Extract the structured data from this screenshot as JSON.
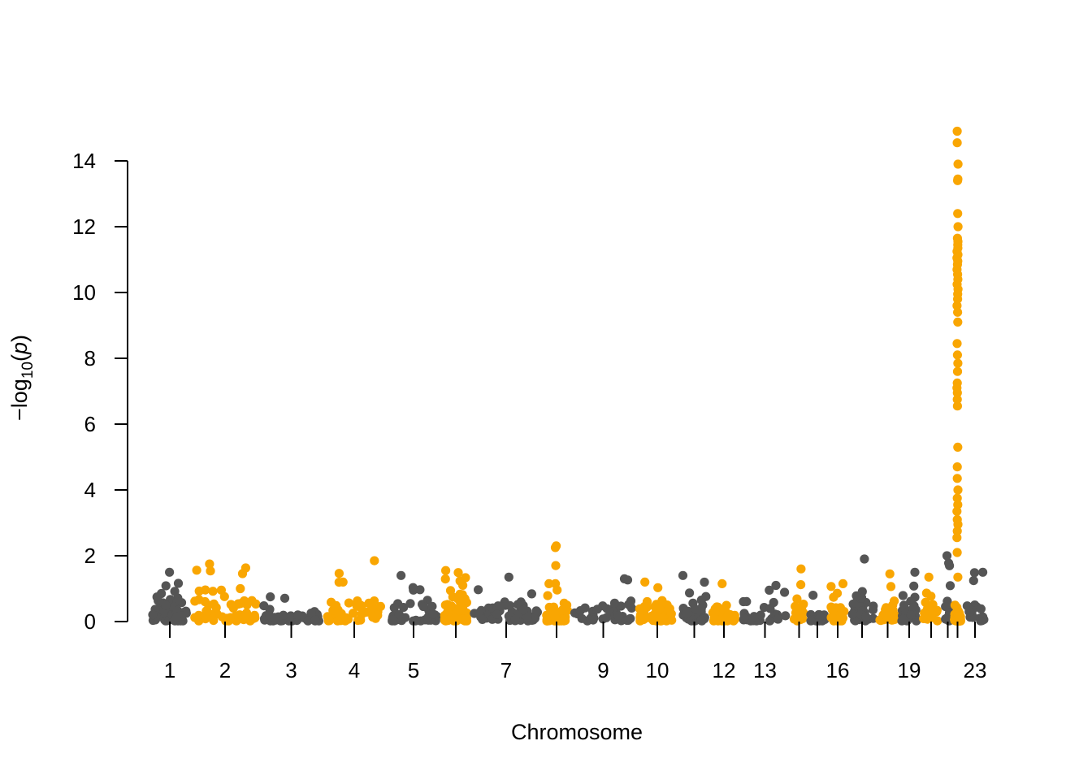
{
  "chart_data": {
    "type": "scatter",
    "subtype": "manhattan",
    "xlabel": "Chromosome",
    "ylabel": {
      "prefix": "−log",
      "subscript": "10",
      "open": "(",
      "var": "p",
      "close": ")"
    },
    "ylim": [
      0,
      14
    ],
    "yticks": [
      0,
      2,
      4,
      6,
      8,
      10,
      12,
      14
    ],
    "grid": false,
    "legend": "none",
    "colors": {
      "odd": "#555555",
      "even": "#F9A602"
    },
    "x_tick_labels": [
      "1",
      "2",
      "3",
      "4",
      "5",
      "7",
      "9",
      "10",
      "12",
      "13",
      "16",
      "19",
      "23"
    ],
    "chromosomes": [
      {
        "chr": "1",
        "label": "1",
        "seed": 11,
        "n": 70,
        "max": 1.5,
        "peaks": []
      },
      {
        "chr": "2",
        "label": "2",
        "seed": 23,
        "n": 60,
        "max": 1.75,
        "peaks": []
      },
      {
        "chr": "3",
        "label": "3",
        "seed": 37,
        "n": 45,
        "max": 0.75,
        "peaks": []
      },
      {
        "chr": "4",
        "label": "4",
        "seed": 41,
        "n": 50,
        "max": 1.85,
        "peaks": []
      },
      {
        "chr": "5",
        "label": "5",
        "seed": 53,
        "n": 38,
        "max": 1.4,
        "peaks": []
      },
      {
        "chr": "6",
        "label": "",
        "seed": 67,
        "n": 70,
        "max": 1.55,
        "peaks": []
      },
      {
        "chr": "7",
        "label": "7",
        "seed": 71,
        "n": 60,
        "max": 1.35,
        "peaks": []
      },
      {
        "chr": "8",
        "label": "",
        "seed": 83,
        "n": 45,
        "max": 1.15,
        "peaks": [
          2.3,
          2.25,
          1.7,
          1.15
        ]
      },
      {
        "chr": "9",
        "label": "9",
        "seed": 97,
        "n": 40,
        "max": 1.3,
        "peaks": []
      },
      {
        "chr": "10",
        "label": "10",
        "seed": 101,
        "n": 45,
        "max": 1.2,
        "peaks": []
      },
      {
        "chr": "11",
        "label": "",
        "seed": 113,
        "n": 40,
        "max": 1.4,
        "peaks": []
      },
      {
        "chr": "12",
        "label": "12",
        "seed": 127,
        "n": 45,
        "max": 1.15,
        "peaks": []
      },
      {
        "chr": "13",
        "label": "13",
        "seed": 131,
        "n": 30,
        "max": 1.1,
        "peaks": []
      },
      {
        "chr": "14",
        "label": "",
        "seed": 139,
        "n": 15,
        "max": 1.6,
        "peaks": []
      },
      {
        "chr": "15",
        "label": "",
        "seed": 149,
        "n": 18,
        "max": 0.8,
        "peaks": []
      },
      {
        "chr": "16",
        "label": "16",
        "seed": 157,
        "n": 28,
        "max": 1.15,
        "peaks": []
      },
      {
        "chr": "17",
        "label": "",
        "seed": 163,
        "n": 28,
        "max": 1.9,
        "peaks": []
      },
      {
        "chr": "18",
        "label": "",
        "seed": 173,
        "n": 28,
        "max": 1.45,
        "peaks": []
      },
      {
        "chr": "19",
        "label": "19",
        "seed": 181,
        "n": 30,
        "max": 1.5,
        "peaks": []
      },
      {
        "chr": "20",
        "label": "",
        "seed": 191,
        "n": 18,
        "max": 1.35,
        "peaks": []
      },
      {
        "chr": "21",
        "label": "",
        "seed": 193,
        "n": 15,
        "max": 2.0,
        "peaks": []
      },
      {
        "chr": "22",
        "label": "",
        "seed": 197,
        "n": 70,
        "max": 0.5,
        "peaks": [
          14.9,
          14.55,
          13.9,
          13.45,
          13.4,
          12.4,
          12.0,
          11.65,
          11.55,
          11.45,
          11.35,
          11.25,
          11.15,
          11.05,
          10.95,
          10.85,
          10.7,
          10.55,
          10.4,
          10.25,
          10.1,
          9.95,
          9.8,
          9.6,
          9.4,
          9.1,
          8.45,
          8.1,
          7.85,
          7.6,
          7.25,
          7.1,
          6.95,
          6.75,
          6.55,
          5.3,
          4.7,
          4.35,
          4.0,
          3.75,
          3.55,
          3.35,
          3.1,
          2.95,
          2.75,
          2.55,
          2.1,
          1.35
        ]
      },
      {
        "chr": "23",
        "label": "23",
        "seed": 211,
        "n": 20,
        "max": 1.5,
        "peaks": []
      }
    ]
  }
}
